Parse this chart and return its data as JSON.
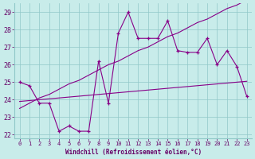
{
  "x": [
    0,
    1,
    2,
    3,
    4,
    5,
    6,
    7,
    8,
    9,
    10,
    11,
    12,
    13,
    14,
    15,
    16,
    17,
    18,
    19,
    20,
    21,
    22,
    23
  ],
  "line_data": [
    25.0,
    24.8,
    23.8,
    23.8,
    22.2,
    22.5,
    22.2,
    22.2,
    26.2,
    23.8,
    27.8,
    29.0,
    27.5,
    27.5,
    27.5,
    28.5,
    26.8,
    26.7,
    26.7,
    27.5,
    26.0,
    26.8,
    25.9,
    24.2
  ],
  "reg_steep": [
    23.5,
    23.8,
    24.1,
    24.3,
    24.6,
    24.9,
    25.1,
    25.4,
    25.7,
    26.0,
    26.2,
    26.5,
    26.8,
    27.0,
    27.3,
    27.6,
    27.8,
    28.1,
    28.4,
    28.6,
    28.9,
    29.2,
    29.4,
    29.7
  ],
  "reg_flat": [
    23.9,
    23.95,
    24.0,
    24.05,
    24.1,
    24.15,
    24.2,
    24.25,
    24.3,
    24.35,
    24.4,
    24.45,
    24.5,
    24.55,
    24.6,
    24.65,
    24.7,
    24.75,
    24.8,
    24.85,
    24.9,
    24.95,
    25.0,
    25.05
  ],
  "bg_color": "#c8ecea",
  "line_color": "#880088",
  "grid_color": "#90c8c8",
  "xlabel": "Windchill (Refroidissement éolien,°C)",
  "ylim": [
    21.8,
    29.5
  ],
  "xlim": [
    -0.5,
    23.5
  ],
  "yticks": [
    22,
    23,
    24,
    25,
    26,
    27,
    28,
    29
  ],
  "xticks": [
    0,
    1,
    2,
    3,
    4,
    5,
    6,
    7,
    8,
    9,
    10,
    11,
    12,
    13,
    14,
    15,
    16,
    17,
    18,
    19,
    20,
    21,
    22,
    23
  ]
}
